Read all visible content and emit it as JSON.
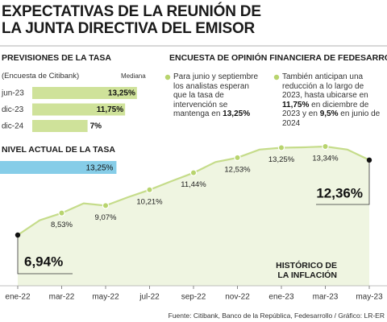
{
  "title_lines": [
    "EXPECTATIVAS DE LA REUNIÓN DE",
    "LA JUNTA DIRECTIVA DEL EMISOR"
  ],
  "survey": {
    "title": "ENCUESTA DE OPINIÓN FINANCIERA DE FEDESARROLLO",
    "items": [
      [
        "Para junio y septiembre los analistas esperan que la tasa de intervención se mantenga en ",
        "13,25%"
      ],
      [
        "También anticipan una reducción a lo largo de 2023, hasta ubicarse en ",
        "11,75%",
        " en diciembre de 2023 y en ",
        "9,5%",
        " en junio de 2024"
      ]
    ]
  },
  "source": "Fuente: Citibank, Banco de la República, Fedesarrollo / Gráfico: LR-ER",
  "chart_data": [
    {
      "type": "bar",
      "orientation": "horizontal",
      "title": "PREVISIONES DE LA TASA",
      "subtitle": "(Encuesta de Citibank)",
      "value_header": "Mediana",
      "categories": [
        "jun-23",
        "dic-23",
        "dic-24"
      ],
      "values": [
        13.25,
        11.75,
        7
      ],
      "value_labels": [
        "13,25%",
        "11,75%",
        "7%"
      ],
      "color": "#cfe29a"
    },
    {
      "type": "bar",
      "orientation": "horizontal",
      "title": "NIVEL ACTUAL DE LA TASA",
      "values": [
        13.25
      ],
      "value_labels": [
        "13,25%"
      ],
      "color": "#86cde8"
    },
    {
      "type": "line",
      "title": "HISTÓRICO DE LA INFLACIÓN",
      "categories": [
        "ene-22",
        null,
        "mar-22",
        null,
        "may-22",
        null,
        "jul-22",
        null,
        "sep-22",
        null,
        "nov-22",
        null,
        "ene-23",
        null,
        "mar-23",
        null,
        "may-23"
      ],
      "values": [
        6.94,
        8.01,
        8.53,
        9.23,
        9.07,
        9.67,
        10.21,
        10.84,
        11.44,
        12.22,
        12.53,
        13.12,
        13.25,
        13.28,
        13.34,
        13.12,
        12.36
      ],
      "value_labels": [
        "6,94%",
        null,
        "8,53%",
        null,
        "9,07%",
        null,
        "10,21%",
        null,
        "11,44%",
        null,
        "12,53%",
        null,
        "13,25%",
        null,
        "13,34%",
        null,
        "12,36%"
      ],
      "color": "#c5dc8a",
      "area_color": "#eff5e1"
    }
  ]
}
